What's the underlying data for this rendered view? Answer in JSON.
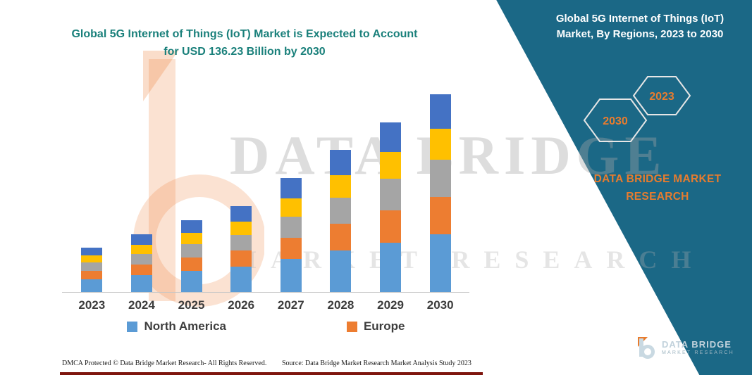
{
  "colors": {
    "title_teal": "#1a807b",
    "panel_blue": "#1b6886",
    "accent_orange": "#e87c2e",
    "axis_label": "#3d3d3d",
    "bottom_strip_red": "#7e150e"
  },
  "header": {
    "title_line1": "Global 5G Internet of Things (IoT) Market is Expected to Account",
    "title_line2": "for USD 136.23 Billion by 2030"
  },
  "side_panel": {
    "title_line1": "Global 5G Internet of Things (IoT)",
    "title_line2": "Market, By Regions, 2023 to 2030",
    "hexagon_back_label": "2030",
    "hexagon_front_label": "2023",
    "brand_line1": "DATA BRIDGE MARKET",
    "brand_line2": "RESEARCH"
  },
  "watermark": {
    "line1": "DATA BRIDGE",
    "line2": "MARKET RESEARCH"
  },
  "chart_data": {
    "type": "bar",
    "stacked": true,
    "title": "",
    "xlabel": "",
    "ylabel": "",
    "y_axis_visible": false,
    "grid": false,
    "legend_position": "bottom",
    "values_unit": "USD Billion (estimated from bar heights; 2030 total read as 136.23 per title)",
    "ylim": [
      0,
      140
    ],
    "categories": [
      "2023",
      "2024",
      "2025",
      "2026",
      "2027",
      "2028",
      "2029",
      "2030"
    ],
    "series": [
      {
        "name": "North America",
        "color": "#5b9bd5",
        "in_legend": true,
        "values": [
          8.8,
          11.7,
          14.6,
          17.5,
          22.9,
          28.7,
          34.1,
          39.9
        ]
      },
      {
        "name": "Europe",
        "color": "#ed7d31",
        "in_legend": true,
        "values": [
          5.8,
          7.3,
          9.2,
          11.2,
          14.6,
          18.5,
          21.9,
          25.8
        ]
      },
      {
        "name": "unlabeled-gray",
        "color": "#a5a5a5",
        "in_legend": false,
        "values": [
          5.8,
          7.3,
          9.2,
          10.7,
          14.6,
          18.0,
          21.9,
          25.3
        ]
      },
      {
        "name": "unlabeled-yellow",
        "color": "#ffc000",
        "in_legend": false,
        "values": [
          4.9,
          6.3,
          7.8,
          9.2,
          12.2,
          15.1,
          18.5,
          21.4
        ]
      },
      {
        "name": "unlabeled-blue",
        "color": "#4472c4",
        "in_legend": false,
        "values": [
          5.4,
          7.3,
          8.8,
          10.7,
          14.1,
          17.5,
          20.4,
          23.8
        ]
      }
    ]
  },
  "legend": {
    "items": [
      {
        "label": "North America",
        "color": "#5b9bd5"
      },
      {
        "label": "Europe",
        "color": "#ed7d31"
      }
    ]
  },
  "footer": {
    "dmca": "DMCA Protected © Data Bridge Market Research-  All Rights Reserved.",
    "source": "Source: Data Bridge Market Research  Market Analysis Study 2023"
  },
  "footer_logo": {
    "brand_line1": "DATA BRIDGE",
    "brand_line2": "MARKET RESEARCH"
  }
}
